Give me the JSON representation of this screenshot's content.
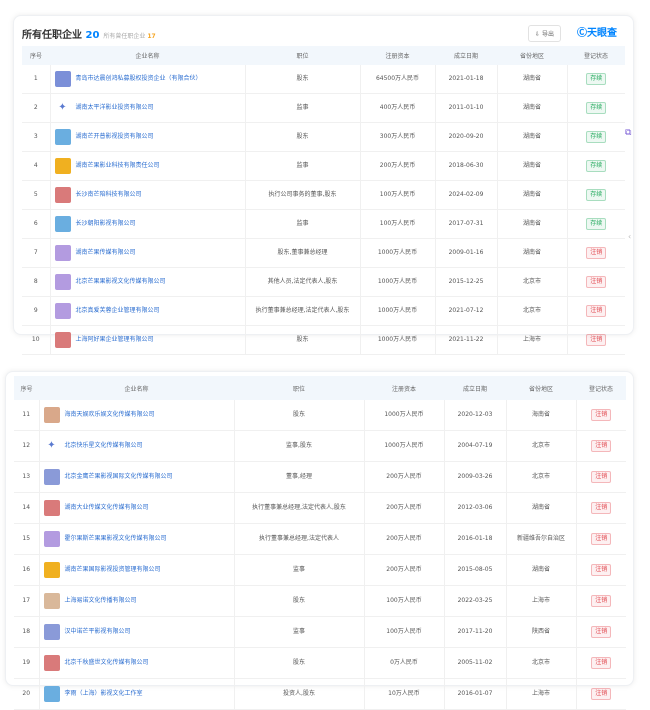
{
  "header": {
    "title": "所有任职企业",
    "count": "20",
    "sub_label": "所有曾任职企业",
    "sub_count": "17",
    "export_label": "导出",
    "brand": "天眼查"
  },
  "columns": [
    "序号",
    "企业名称",
    "职位",
    "注册资本",
    "成立日期",
    "省份地区",
    "登记状态"
  ],
  "status_colors": {
    "存续": "#1fa85a",
    "注销": "#e0444b"
  },
  "rows": [
    {
      "no": "1",
      "name": "青岛市达晨创鸿私募股权投资企业（有限合伙）",
      "role": "股东",
      "capital": "64500万人民币",
      "date": "2021-01-18",
      "region": "湖南省",
      "status": "存续",
      "logo_color": "#7b8fd8"
    },
    {
      "no": "2",
      "name": "湖南太平洋影业投资有限公司",
      "role": "监事",
      "capital": "400万人民币",
      "date": "2011-01-10",
      "region": "湖南省",
      "status": "存续",
      "logo_color": "#ffffff"
    },
    {
      "no": "3",
      "name": "湖南芒开普影视投资有限公司",
      "role": "股东",
      "capital": "300万人民币",
      "date": "2020-09-20",
      "region": "湖南省",
      "status": "存续",
      "logo_color": "#6aaee0"
    },
    {
      "no": "4",
      "name": "湖南芒果影业科技有限责任公司",
      "role": "监事",
      "capital": "200万人民币",
      "date": "2018-06-30",
      "region": "湖南省",
      "status": "存续",
      "logo_color": "#f0b020"
    },
    {
      "no": "5",
      "name": "长沙南芒陪科技有限公司",
      "role": "执行公司事务的董事,股东",
      "capital": "100万人民币",
      "date": "2024-02-09",
      "region": "湖南省",
      "status": "存续",
      "logo_color": "#d97a7a"
    },
    {
      "no": "6",
      "name": "长沙朝阳影视有限公司",
      "role": "监事",
      "capital": "100万人民币",
      "date": "2017-07-31",
      "region": "湖南省",
      "status": "存续",
      "logo_color": "#6aaee0"
    },
    {
      "no": "7",
      "name": "湖南芒果传媒有限公司",
      "role": "股东,董事兼总经理",
      "capital": "1000万人民币",
      "date": "2009-01-16",
      "region": "湖南省",
      "status": "注销",
      "logo_color": "#b39be0"
    },
    {
      "no": "8",
      "name": "北京芒果果影视文化传媒有限公司",
      "role": "其他人员,法定代表人,股东",
      "capital": "1000万人民币",
      "date": "2015-12-25",
      "region": "北京市",
      "status": "注销",
      "logo_color": "#b39be0"
    },
    {
      "no": "9",
      "name": "北京真爱芙蓉企业管理有限公司",
      "role": "执行董事兼总经理,法定代表人,股东",
      "capital": "1000万人民币",
      "date": "2021-07-12",
      "region": "北京市",
      "status": "注销",
      "logo_color": "#b39be0"
    },
    {
      "no": "10",
      "name": "上海阿好果企业管理有限公司",
      "role": "股东",
      "capital": "1000万人民币",
      "date": "2021-11-22",
      "region": "上海市",
      "status": "注销",
      "logo_color": "#d97a7a"
    },
    {
      "no": "11",
      "name": "海南天娱欢乐娱文化传媒有限公司",
      "role": "股东",
      "capital": "1000万人民币",
      "date": "2020-12-03",
      "region": "海南省",
      "status": "注销",
      "logo_color": "#d9a88a"
    },
    {
      "no": "12",
      "name": "北京快乐星文化传媒有限公司",
      "role": "监事,股东",
      "capital": "1000万人民币",
      "date": "2004-07-19",
      "region": "北京市",
      "status": "注销",
      "logo_color": "#ffffff"
    },
    {
      "no": "13",
      "name": "北京金鹰芒果影视国际文化传媒有限公司",
      "role": "董事,经理",
      "capital": "200万人民币",
      "date": "2009-03-26",
      "region": "北京市",
      "status": "注销",
      "logo_color": "#8a9ad8"
    },
    {
      "no": "14",
      "name": "湖南大业传媒文化传媒有限公司",
      "role": "执行董事兼总经理,法定代表人,股东",
      "capital": "200万人民币",
      "date": "2012-03-06",
      "region": "湖南省",
      "status": "注销",
      "logo_color": "#d97a7a"
    },
    {
      "no": "15",
      "name": "霍尔果斯芒果果影视文化传媒有限公司",
      "role": "执行董事兼总经理,法定代表人",
      "capital": "200万人民币",
      "date": "2016-01-18",
      "region": "新疆维吾尔自治区",
      "status": "注销",
      "logo_color": "#b39be0"
    },
    {
      "no": "16",
      "name": "湖南芒果国际影视投资管理有限公司",
      "role": "监事",
      "capital": "200万人民币",
      "date": "2015-08-05",
      "region": "湖南省",
      "status": "注销",
      "logo_color": "#f0b020"
    },
    {
      "no": "17",
      "name": "上海易诺文化传播有限公司",
      "role": "股东",
      "capital": "100万人民币",
      "date": "2022-03-25",
      "region": "上海市",
      "status": "注销",
      "logo_color": "#d9b89a"
    },
    {
      "no": "18",
      "name": "汉中诺芒平影视有限公司",
      "role": "监事",
      "capital": "100万人民币",
      "date": "2017-11-20",
      "region": "陕西省",
      "status": "注销",
      "logo_color": "#8a9ad8"
    },
    {
      "no": "19",
      "name": "北京千秋盛世文化传媒有限公司",
      "role": "股东",
      "capital": "0万人民币",
      "date": "2005-11-02",
      "region": "北京市",
      "status": "注销",
      "logo_color": "#d97a7a"
    },
    {
      "no": "20",
      "name": "李雨（上海）影视文化工作室",
      "role": "投资人,股东",
      "capital": "10万人民币",
      "date": "2016-01-07",
      "region": "上海市",
      "status": "注销",
      "logo_color": "#6aaee0"
    }
  ]
}
